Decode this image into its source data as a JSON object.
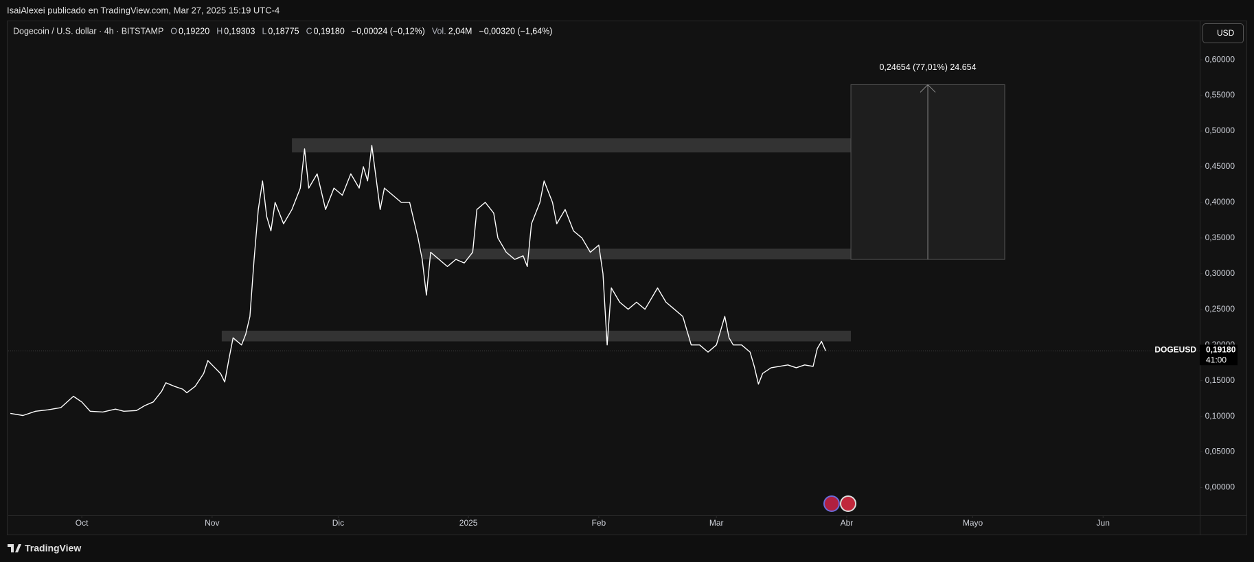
{
  "header": {
    "text": "IsaiAlexei publicado en TradingView.com, Mar 27, 2025 15:19 UTC-4"
  },
  "footer": {
    "brand": "TradingView"
  },
  "chart_data": {
    "type": "line",
    "title": "Dogecoin / U.S. dollar · 4h · BITSTAMP",
    "ohlc": [
      {
        "key": "O",
        "text": "0,19220"
      },
      {
        "key": "H",
        "text": "0,19303"
      },
      {
        "key": "L",
        "text": "0,18775"
      },
      {
        "key": "C",
        "text": "0,19180"
      }
    ],
    "change": "−0,00024 (−0,12%)",
    "volume": {
      "key": "Vol.",
      "text": "2,04M"
    },
    "volume_change": "−0,00320 (−1,64%)",
    "currency": "USD",
    "series": [
      {
        "name": "DOGEUSD",
        "color": "#ffffff",
        "x": [
          -17,
          -14,
          -11,
          -8,
          -5,
          -2,
          0,
          2,
          5,
          8,
          10,
          13,
          15,
          17,
          19,
          20,
          22,
          24,
          25,
          27,
          29,
          30,
          31,
          33,
          34,
          35,
          36,
          37,
          38,
          39,
          40,
          41,
          42,
          43,
          44,
          45,
          46,
          48,
          50,
          52,
          53,
          54,
          56,
          58,
          60,
          62,
          64,
          66,
          67,
          68,
          69,
          71,
          72,
          74,
          76,
          78,
          80,
          81,
          82,
          83,
          85,
          87,
          89,
          91,
          93,
          94,
          96,
          98,
          99,
          101,
          103,
          105,
          106,
          107,
          109,
          110,
          112,
          113,
          115,
          117,
          119,
          121,
          123,
          124,
          125,
          126,
          128,
          130,
          132,
          134,
          137,
          139,
          141,
          143,
          145,
          147,
          149,
          151,
          153,
          154,
          155,
          157,
          159,
          160,
          161,
          162,
          164,
          166,
          168,
          170,
          172,
          174,
          175,
          176,
          177
        ],
        "values": [
          0.104,
          0.101,
          0.107,
          0.109,
          0.112,
          0.128,
          0.12,
          0.107,
          0.106,
          0.11,
          0.107,
          0.108,
          0.115,
          0.12,
          0.135,
          0.147,
          0.142,
          0.138,
          0.133,
          0.142,
          0.16,
          0.178,
          0.172,
          0.16,
          0.148,
          0.18,
          0.21,
          0.205,
          0.2,
          0.215,
          0.24,
          0.32,
          0.39,
          0.43,
          0.38,
          0.36,
          0.4,
          0.37,
          0.39,
          0.42,
          0.475,
          0.42,
          0.44,
          0.39,
          0.42,
          0.41,
          0.44,
          0.42,
          0.45,
          0.43,
          0.48,
          0.39,
          0.42,
          0.41,
          0.4,
          0.4,
          0.35,
          0.32,
          0.27,
          0.33,
          0.32,
          0.31,
          0.32,
          0.315,
          0.33,
          0.39,
          0.4,
          0.385,
          0.35,
          0.33,
          0.32,
          0.325,
          0.31,
          0.37,
          0.4,
          0.43,
          0.4,
          0.37,
          0.39,
          0.36,
          0.35,
          0.33,
          0.34,
          0.3,
          0.2,
          0.28,
          0.26,
          0.25,
          0.26,
          0.25,
          0.28,
          0.26,
          0.25,
          0.24,
          0.2,
          0.2,
          0.19,
          0.2,
          0.24,
          0.21,
          0.2,
          0.2,
          0.19,
          0.17,
          0.145,
          0.16,
          0.168,
          0.17,
          0.172,
          0.168,
          0.172,
          0.17,
          0.195,
          0.205,
          0.1918
        ]
      }
    ],
    "last_price": {
      "value": 0.1918,
      "label": "0,19180",
      "countdown": "41:00"
    },
    "zones": [
      {
        "x": [
          50,
          183
        ],
        "y": [
          0.47,
          0.49
        ]
      },
      {
        "x": [
          81,
          183
        ],
        "y": [
          0.32,
          0.335
        ]
      },
      {
        "x": [
          33.3,
          183
        ],
        "y": [
          0.205,
          0.22
        ]
      }
    ],
    "projection": {
      "x": [
        183,
        219.6
      ],
      "y": [
        0.32,
        0.565
      ],
      "label": "0,24654 (77,01%) 24.654"
    },
    "xlim": [
      -17.5,
      266
    ],
    "xticks": [
      {
        "value": 0,
        "label": "Oct"
      },
      {
        "value": 31,
        "label": "Nov"
      },
      {
        "value": 61,
        "label": "Dic"
      },
      {
        "value": 92,
        "label": "2025"
      },
      {
        "value": 123,
        "label": "Feb"
      },
      {
        "value": 151,
        "label": "Mar"
      },
      {
        "value": 182,
        "label": "Abr"
      },
      {
        "value": 212,
        "label": "Mayo"
      },
      {
        "value": 243,
        "label": "Jun"
      }
    ],
    "ylim": [
      -0.039,
      0.654
    ],
    "yticks": [
      {
        "value": 0,
        "label": "0,00000"
      },
      {
        "value": 0.05,
        "label": "0,05000"
      },
      {
        "value": 0.1,
        "label": "0,10000"
      },
      {
        "value": 0.15,
        "label": "0,15000"
      },
      {
        "value": 0.2,
        "label": "0,20000"
      },
      {
        "value": 0.25,
        "label": "0,25000"
      },
      {
        "value": 0.3,
        "label": "0,30000"
      },
      {
        "value": 0.35,
        "label": "0,35000"
      },
      {
        "value": 0.4,
        "label": "0,40000"
      },
      {
        "value": 0.45,
        "label": "0,45000"
      },
      {
        "value": 0.5,
        "label": "0,50000"
      },
      {
        "value": 0.55,
        "label": "0,55000"
      },
      {
        "value": 0.6,
        "label": "0,60000"
      }
    ]
  }
}
